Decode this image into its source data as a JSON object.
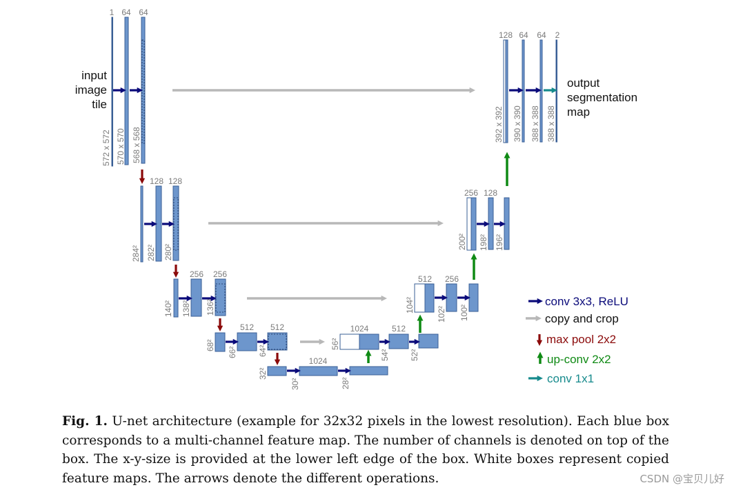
{
  "diagram": {
    "input_label": [
      "input",
      "image",
      "tile"
    ],
    "output_label": [
      "output",
      "segmentation",
      "map"
    ],
    "channels": {
      "c_in": "1",
      "c1a": "64",
      "c1b": "64",
      "c2a": "128",
      "c2b": "128",
      "c3a": "256",
      "c3b": "256",
      "c4a": "512",
      "c4b": "512",
      "c5a": "1024",
      "u4a": "1024",
      "u4b": "512",
      "u3a": "512",
      "u3b": "256",
      "u2a": "256",
      "u2b": "128",
      "u1a": "128",
      "u1b": "64",
      "u1c": "64",
      "u1d": "2"
    },
    "sizes": {
      "s_in": "572 x 572",
      "s1a": "570 x 570",
      "s1b": "568 x 568",
      "s2p": "284²",
      "s2a": "282²",
      "s2b": "280²",
      "s3p": "140²",
      "s3a": "138²",
      "s3b": "136²",
      "s4p": "68²",
      "s4a": "66²",
      "s4b": "64²",
      "s5p": "32²",
      "s5a": "30²",
      "s5b": "28²",
      "u4c": "56²",
      "u4a": "54²",
      "u4b": "52²",
      "u3c": "104²",
      "u3a": "102²",
      "u3b": "100²",
      "u2c": "200²",
      "u2a": "198²",
      "u2b": "196²",
      "u1c": "392 x 392",
      "u1a": "390 x 390",
      "u1b": "388 x 388",
      "u1d": "388 x 388"
    }
  },
  "legend": {
    "conv": "conv 3x3, ReLU",
    "copy": "copy and crop",
    "pool": "max pool 2x2",
    "upconv": "up-conv 2x2",
    "conv1x1": "conv 1x1"
  },
  "colors": {
    "box_fill": "#6d96cc",
    "box_stroke": "#3a5f96",
    "conv_arrow": "#0b0b7a",
    "copy_arrow": "#b8b8b8",
    "pool_arrow": "#8b0a0a",
    "upconv_arrow": "#0f8a14",
    "conv1x1_arrow": "#168a8c",
    "label_gray": "#7a7a7a"
  },
  "caption": {
    "fig": "Fig. 1.",
    "text": " U-net architecture (example for 32x32 pixels in the lowest resolution). Each blue box corresponds to a multi-channel feature map. The number of channels is denoted on top of the box. The x-y-size is provided at the lower left edge of the box. White boxes represent copied feature maps. The arrows denote the different operations."
  },
  "watermark": "CSDN @宝贝儿好"
}
